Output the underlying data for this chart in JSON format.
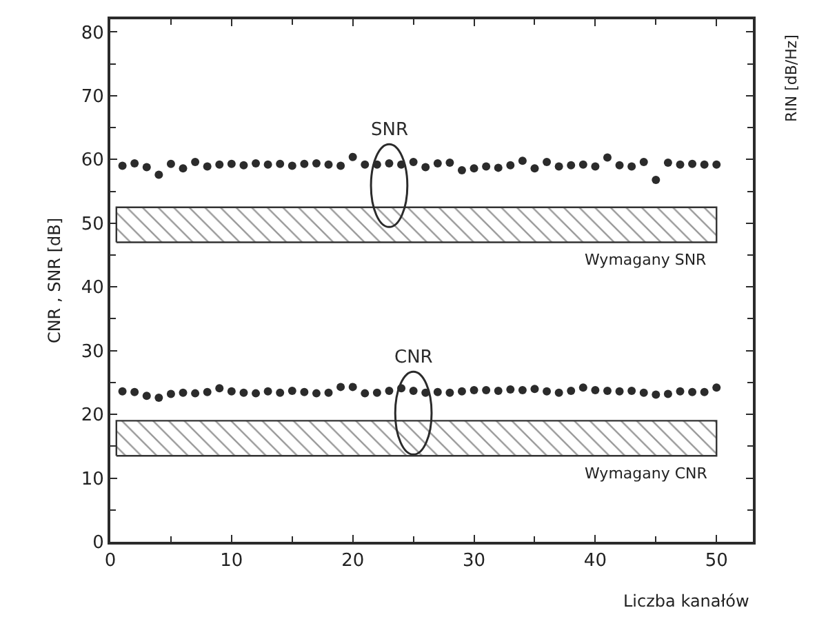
{
  "chart_data": {
    "type": "scatter",
    "xlabel": "Liczba kanałów",
    "ylabel": "CNR , SNR [dB]",
    "y2label": "RIN [dB/Hz]",
    "x": [
      1,
      2,
      3,
      4,
      5,
      6,
      7,
      8,
      9,
      10,
      11,
      12,
      13,
      14,
      15,
      16,
      17,
      18,
      19,
      20,
      21,
      22,
      23,
      24,
      25,
      26,
      27,
      28,
      29,
      30,
      31,
      32,
      33,
      34,
      35,
      36,
      37,
      38,
      39,
      40,
      41,
      42,
      43,
      44,
      45,
      46,
      47,
      48,
      49,
      50
    ],
    "series": [
      {
        "name": "SNR",
        "color": "#2b2b2b",
        "values": [
          59.0,
          59.4,
          58.8,
          57.6,
          59.3,
          58.6,
          59.6,
          58.9,
          59.2,
          59.3,
          59.1,
          59.4,
          59.2,
          59.3,
          59.0,
          59.3,
          59.4,
          59.2,
          59.0,
          60.4,
          59.2,
          59.2,
          59.4,
          59.2,
          59.6,
          58.8,
          59.4,
          59.5,
          58.3,
          58.6,
          58.9,
          58.7,
          59.1,
          59.8,
          58.6,
          59.6,
          58.9,
          59.1,
          59.2,
          58.9,
          60.3,
          59.1,
          58.9,
          59.6,
          56.8,
          59.5,
          59.2,
          59.3,
          59.2,
          59.2
        ]
      },
      {
        "name": "CNR",
        "color": "#2b2b2b",
        "values": [
          23.6,
          23.5,
          22.9,
          22.6,
          23.2,
          23.4,
          23.3,
          23.5,
          24.1,
          23.6,
          23.4,
          23.3,
          23.6,
          23.4,
          23.7,
          23.5,
          23.3,
          23.4,
          24.3,
          24.3,
          23.3,
          23.4,
          23.7,
          24.1,
          23.7,
          23.4,
          23.5,
          23.4,
          23.6,
          23.8,
          23.8,
          23.7,
          23.9,
          23.8,
          24.0,
          23.6,
          23.4,
          23.7,
          24.2,
          23.8,
          23.7,
          23.6,
          23.7,
          23.4,
          23.1,
          23.2,
          23.6,
          23.5,
          23.5,
          24.2
        ]
      }
    ],
    "marker": "circle",
    "bands": [
      {
        "axis": "y",
        "from": 47,
        "to": 52.5,
        "label": "Wymagany SNR",
        "color": "#333333"
      },
      {
        "axis": "y",
        "from": 13.5,
        "to": 19,
        "label": "Wymagany CNR",
        "color": "#333333"
      }
    ],
    "xlim": [
      0,
      53
    ],
    "xticks": [
      0,
      10,
      20,
      30,
      40,
      50
    ],
    "ylim": [
      0,
      82
    ],
    "yticks": [
      0,
      10,
      20,
      30,
      40,
      50,
      60,
      70,
      80
    ],
    "grid": false,
    "legend": false
  }
}
